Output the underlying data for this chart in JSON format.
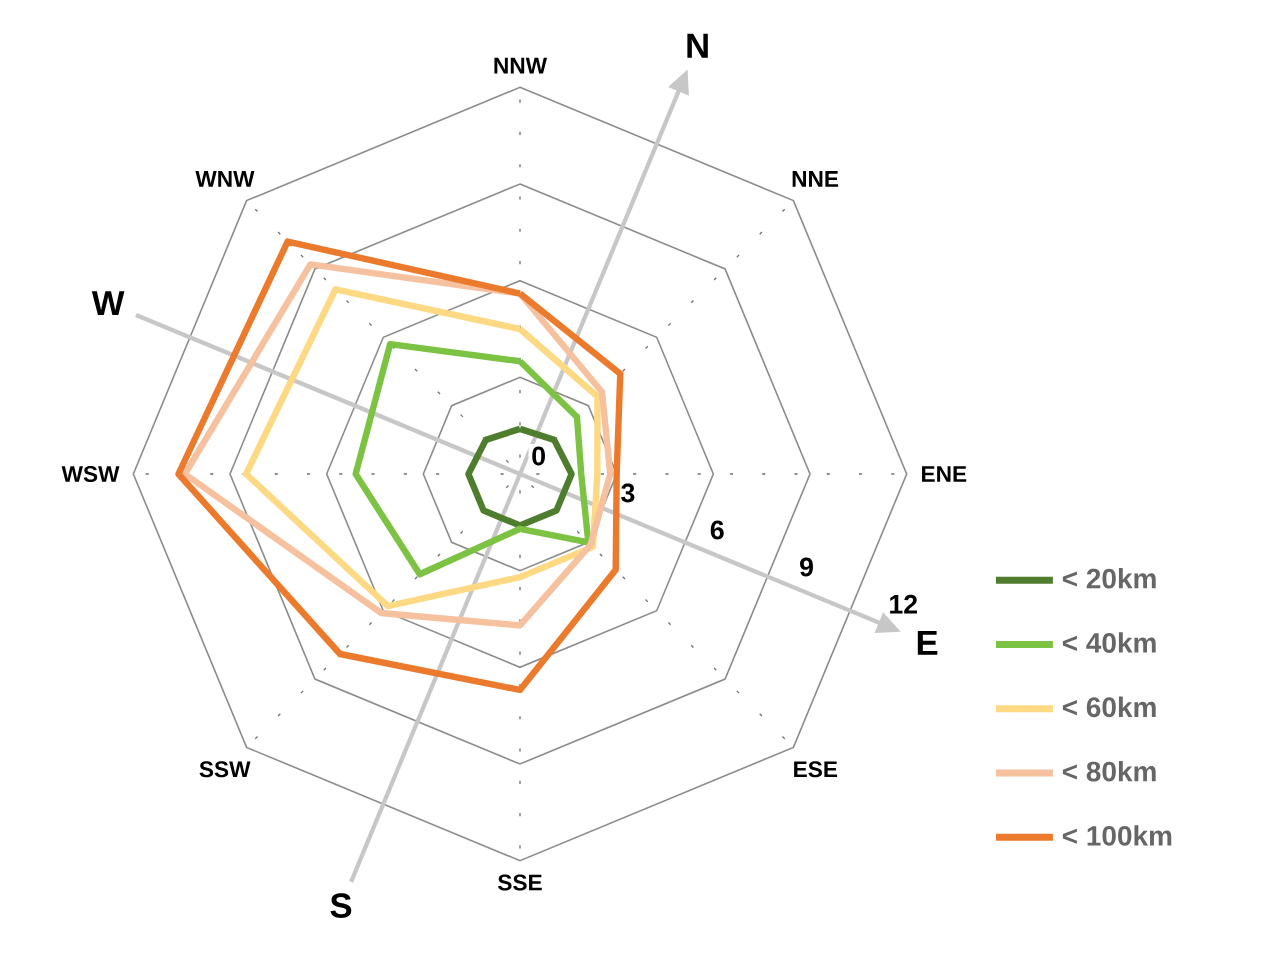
{
  "chart_data": {
    "type": "radar",
    "categories": [
      "NNW",
      "NNE",
      "ENE",
      "ESE",
      "SSE",
      "SSW",
      "WSW",
      "WNW"
    ],
    "ylim": [
      0,
      12
    ],
    "yticks": [
      0,
      3,
      6,
      9,
      12
    ],
    "grid": true,
    "legend": "bottom right",
    "annotations": [
      "N",
      "E",
      "S",
      "W"
    ],
    "series": [
      {
        "name": "< 20km",
        "color": "#4e7d2e",
        "values": [
          1.4,
          1.5,
          1.6,
          1.6,
          1.6,
          1.6,
          1.6,
          1.5
        ]
      },
      {
        "name": "< 40km",
        "color": "#7cc243",
        "values": [
          3.5,
          2.5,
          1.9,
          3.0,
          1.7,
          4.4,
          5.1,
          5.7
        ]
      },
      {
        "name": "< 60km",
        "color": "#fcd982",
        "values": [
          4.5,
          3.4,
          2.4,
          3.2,
          3.2,
          5.8,
          8.5,
          8.1
        ]
      },
      {
        "name": "< 80km",
        "color": "#f5c19e",
        "values": [
          5.6,
          3.6,
          2.8,
          3.1,
          4.7,
          6.1,
          10.4,
          9.2
        ]
      },
      {
        "name": "< 100km",
        "color": "#ec7a2c",
        "values": [
          5.6,
          4.4,
          3.0,
          4.2,
          6.7,
          7.9,
          10.6,
          10.2
        ]
      }
    ]
  }
}
